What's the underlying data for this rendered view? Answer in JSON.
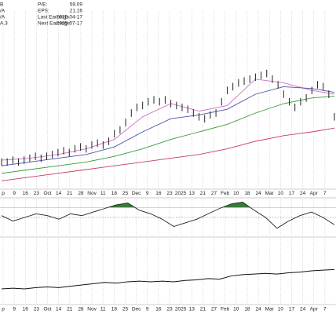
{
  "info": {
    "left": [
      "B",
      "/A",
      "/A",
      "A.3"
    ],
    "rows": [
      {
        "label": "P/E:",
        "value": "59.09"
      },
      {
        "label": "EPS:",
        "value": "21.16"
      },
      {
        "label": "Last Earnings:",
        "value": "2025-04-17"
      },
      {
        "label": "Next Earnings:",
        "value": "2025-07-17"
      }
    ]
  },
  "chart_data": [
    {
      "type": "ohlc",
      "ylim": [
        0,
        100
      ],
      "categories": [
        "p",
        "9",
        "16",
        "23",
        "Oct",
        "14",
        "21",
        "28",
        "Nov",
        "11",
        "18",
        "25",
        "Dec",
        "9",
        "16",
        "23",
        "2025",
        "13",
        "21",
        "27",
        "Feb",
        "10",
        "18",
        "24",
        "Mar",
        "10",
        "17",
        "24",
        "Apr",
        "7"
      ],
      "high": [
        16,
        16,
        17,
        16,
        17,
        18,
        19,
        18,
        19,
        20,
        21,
        22,
        21,
        23,
        24,
        23,
        25,
        26,
        25,
        27,
        31,
        33,
        37,
        42,
        45,
        46,
        48,
        49,
        48,
        49,
        47,
        46,
        45,
        44,
        42,
        40,
        39,
        41,
        42,
        48,
        54,
        56,
        58,
        59,
        60,
        61,
        62,
        63,
        60,
        57,
        52,
        48,
        45,
        48,
        50,
        54,
        57,
        56,
        52,
        40
      ],
      "low": [
        12,
        12,
        13,
        12,
        13,
        14,
        15,
        14,
        15,
        16,
        17,
        18,
        17,
        19,
        20,
        19,
        21,
        22,
        21,
        23,
        27,
        29,
        33,
        38,
        41,
        42,
        44,
        45,
        44,
        45,
        43,
        42,
        41,
        40,
        38,
        36,
        35,
        37,
        38,
        44,
        50,
        52,
        54,
        55,
        56,
        57,
        58,
        59,
        56,
        53,
        48,
        44,
        41,
        44,
        46,
        50,
        53,
        52,
        48,
        36
      ],
      "color": "#222222",
      "series": [
        {
          "name": "MA20",
          "color": "#d070c8",
          "x": [
            0,
            5,
            10,
            15,
            20,
            25,
            30,
            35,
            40,
            45,
            50,
            55,
            59
          ],
          "values": [
            15,
            16,
            18,
            21,
            26,
            38,
            45,
            41,
            44,
            58,
            56,
            52,
            50
          ]
        },
        {
          "name": "MA50",
          "color": "#4a52a8",
          "x": [
            0,
            5,
            10,
            15,
            20,
            25,
            30,
            35,
            40,
            45,
            50,
            55,
            59
          ],
          "values": [
            12,
            14,
            16,
            18,
            22,
            30,
            37,
            39,
            42,
            50,
            54,
            53,
            51
          ]
        },
        {
          "name": "MA100",
          "color": "#3a9a3a",
          "x": [
            0,
            5,
            10,
            15,
            20,
            25,
            30,
            35,
            40,
            45,
            50,
            55,
            59
          ],
          "values": [
            8,
            10,
            12,
            14,
            17,
            21,
            26,
            30,
            34,
            40,
            45,
            48,
            49
          ]
        },
        {
          "name": "MA200",
          "color": "#c83c5a",
          "x": [
            0,
            5,
            10,
            15,
            20,
            25,
            30,
            35,
            40,
            45,
            50,
            55,
            59
          ],
          "values": [
            4,
            6,
            8,
            10,
            12,
            14,
            16,
            18,
            21,
            25,
            28,
            30,
            32
          ]
        }
      ]
    },
    {
      "type": "oscillator",
      "ylim": [
        -1,
        1
      ],
      "upper": 0.55,
      "midline": 0,
      "color": "#222222",
      "fill": "#3a7a3a",
      "values": [
        0.1,
        -0.2,
        0.0,
        0.2,
        0.1,
        -0.1,
        0.2,
        0.1,
        0.3,
        0.5,
        0.7,
        0.8,
        0.4,
        0.2,
        -0.1,
        -0.5,
        -0.3,
        -0.1,
        0.2,
        0.5,
        0.75,
        0.85,
        0.4,
        0.0,
        -0.6,
        -0.2,
        0.1,
        0.3,
        0.0,
        -0.4
      ]
    },
    {
      "type": "line",
      "ylim": [
        0,
        100
      ],
      "color": "#111111",
      "values": [
        22,
        23,
        22,
        24,
        25,
        24,
        26,
        28,
        30,
        32,
        31,
        33,
        34,
        33,
        34,
        33,
        35,
        36,
        38,
        37,
        42,
        44,
        45,
        46,
        45,
        47,
        48,
        50,
        51,
        52
      ]
    }
  ]
}
